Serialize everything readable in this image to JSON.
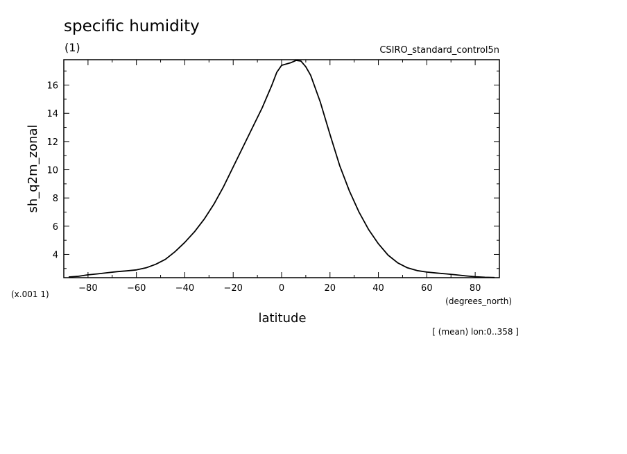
{
  "chart_data": {
    "type": "line",
    "title": "specific humidity",
    "units": "(1)",
    "dataset": "CSIRO_standard_control5n",
    "xlabel": "latitude",
    "xunits": "(degrees_north)",
    "ylabel": "sh_q2m_zonal",
    "yscale_note": "(x.001 1)",
    "footnote": "[ (mean) lon:0..358 ]",
    "xlim": [
      -90,
      90
    ],
    "ylim": [
      2.35,
      17.8
    ],
    "xticks": [
      -80,
      -60,
      -40,
      -20,
      0,
      20,
      40,
      60,
      80
    ],
    "yticks": [
      4,
      6,
      8,
      10,
      12,
      14,
      16
    ],
    "grid": false,
    "series": [
      {
        "x": [
          -88,
          -84,
          -80,
          -76,
          -72,
          -68,
          -64,
          -60,
          -56,
          -52,
          -48,
          -44,
          -40,
          -36,
          -32,
          -28,
          -24,
          -20,
          -16,
          -12,
          -8,
          -4,
          -2,
          0,
          2,
          4,
          6,
          8,
          10,
          12,
          16,
          20,
          24,
          28,
          32,
          36,
          40,
          44,
          48,
          52,
          56,
          60,
          64,
          68,
          72,
          76,
          80,
          84,
          88
        ],
        "y": [
          2.4,
          2.45,
          2.55,
          2.62,
          2.7,
          2.78,
          2.83,
          2.9,
          3.05,
          3.3,
          3.65,
          4.2,
          4.85,
          5.6,
          6.5,
          7.55,
          8.8,
          10.2,
          11.6,
          13.0,
          14.4,
          16.0,
          16.9,
          17.4,
          17.5,
          17.6,
          17.75,
          17.7,
          17.3,
          16.7,
          14.8,
          12.5,
          10.3,
          8.5,
          7.0,
          5.75,
          4.75,
          3.95,
          3.4,
          3.05,
          2.85,
          2.75,
          2.68,
          2.62,
          2.55,
          2.48,
          2.42,
          2.38,
          2.36
        ]
      }
    ]
  }
}
